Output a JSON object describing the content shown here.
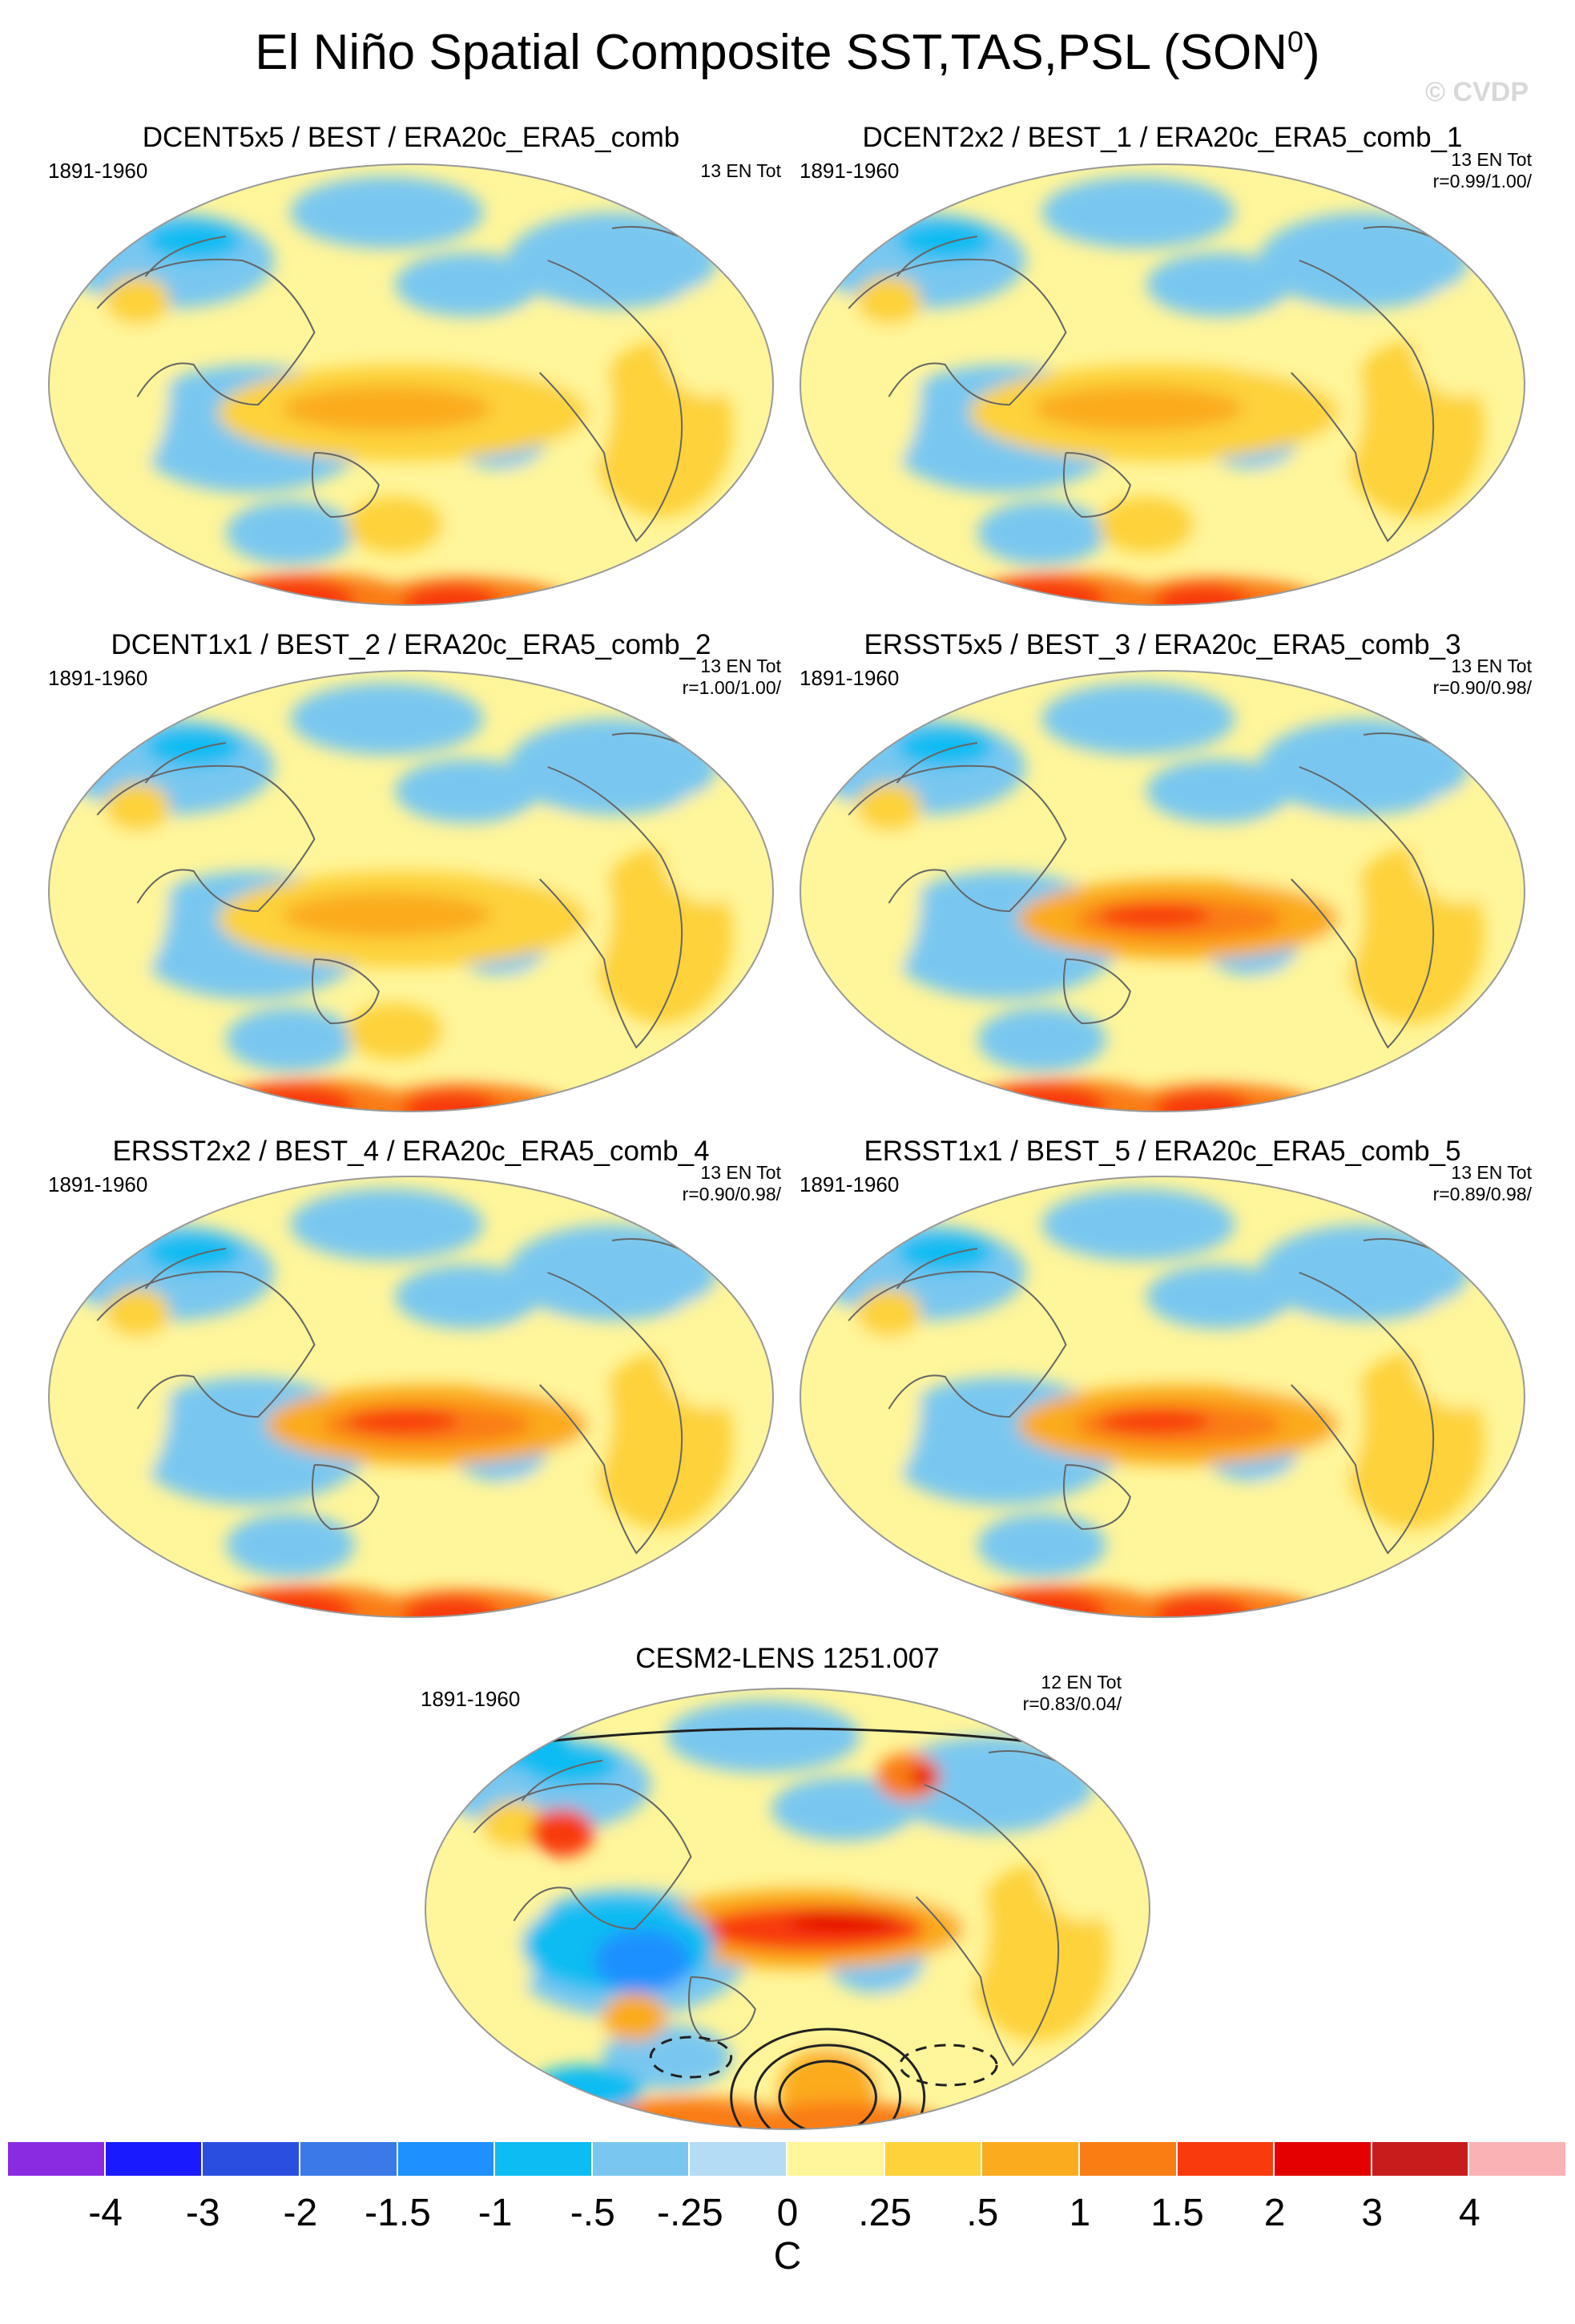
{
  "figure": {
    "title": "El Niño Spatial Composite SST,TAS,PSL (SON",
    "title_sup": "0",
    "title_close": ")",
    "watermark": "© CVDP"
  },
  "panels": [
    {
      "title": "DCENT5x5 / BEST / ERA20c_ERA5_comb",
      "period": "1891-1960",
      "count": "13 EN Tot",
      "corr": "",
      "variant": 0
    },
    {
      "title": "DCENT2x2 / BEST_1 / ERA20c_ERA5_comb_1",
      "period": "1891-1960",
      "count": "13 EN Tot",
      "corr": "r=0.99/1.00/",
      "variant": 0
    },
    {
      "title": "DCENT1x1 / BEST_2 / ERA20c_ERA5_comb_2",
      "period": "1891-1960",
      "count": "13 EN Tot",
      "corr": "r=1.00/1.00/",
      "variant": 0
    },
    {
      "title": "ERSST5x5 / BEST_3 / ERA20c_ERA5_comb_3",
      "period": "1891-1960",
      "count": "13 EN Tot",
      "corr": "r=0.90/0.98/",
      "variant": 1
    },
    {
      "title": "ERSST2x2 / BEST_4 / ERA20c_ERA5_comb_4",
      "period": "1891-1960",
      "count": "13 EN Tot",
      "corr": "r=0.90/0.98/",
      "variant": 1
    },
    {
      "title": "ERSST1x1 / BEST_5 / ERA20c_ERA5_comb_5",
      "period": "1891-1960",
      "count": "13 EN Tot",
      "corr": "r=0.89/0.98/",
      "variant": 1
    },
    {
      "title": "CESM2-LENS 1251.007",
      "period": "1891-1960",
      "count": "12 EN Tot",
      "corr": "r=0.83/0.04/",
      "variant": 2
    }
  ],
  "colorbar": {
    "unit": "C",
    "labels": [
      "-4",
      "-3",
      "-2",
      "-1.5",
      "-1",
      "-.5",
      "-.25",
      "0",
      ".25",
      ".5",
      "1",
      "1.5",
      "2",
      "3",
      "4"
    ],
    "colors": [
      "#8a2be2",
      "#1a1aff",
      "#2a4fe0",
      "#3a7ae8",
      "#1e90ff",
      "#0cbcf2",
      "#79c7f0",
      "#b4dcf4",
      "#fff59a",
      "#fdd23a",
      "#fbab1e",
      "#fa7d14",
      "#f83a0c",
      "#e50000",
      "#c81c1c",
      "#fbb2b4"
    ]
  }
}
